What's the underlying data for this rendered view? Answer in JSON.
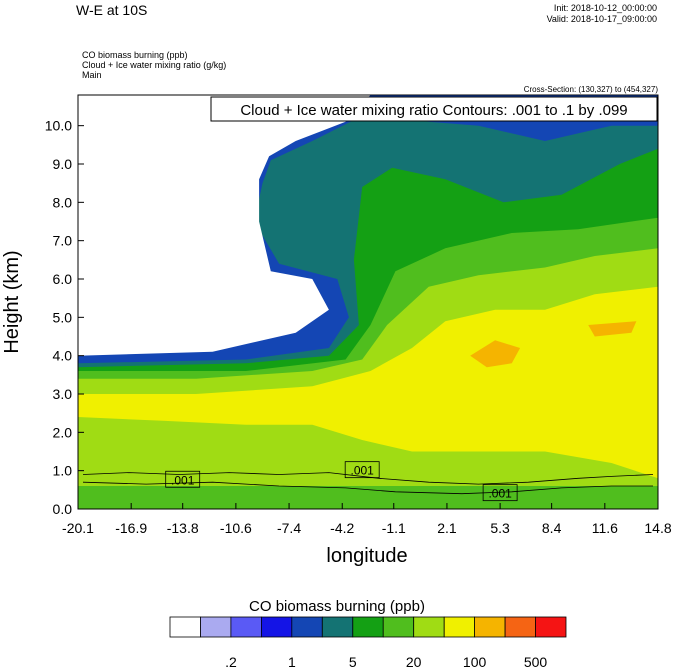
{
  "header": {
    "title": "W-E at 10S",
    "init": "Init: 2018-10-12_00:00:00",
    "valid": "Valid: 2018-10-17_09:00:00",
    "var1": "CO biomass burning   (ppb)",
    "var2": "Cloud + Ice water mixing ratio   (g/kg)",
    "var3": "Main",
    "cross_section": "Cross-Section: (130,327) to (454,327)"
  },
  "chart_data": {
    "type": "heatmap",
    "title": "W-E at 10S",
    "xlabel": "longitude",
    "ylabel": "Height (km)",
    "xlim": [
      -20.1,
      14.8
    ],
    "ylim": [
      0.0,
      10.8
    ],
    "x_ticks": [
      "-20.1",
      "-16.9",
      "-13.8",
      "-10.6",
      "-7.4",
      "-4.2",
      "-1.1",
      "2.1",
      "5.3",
      "8.4",
      "11.6",
      "14.8"
    ],
    "y_ticks": [
      "0.0",
      "1.0",
      "2.0",
      "3.0",
      "4.0",
      "5.0",
      "6.0",
      "7.0",
      "8.0",
      "9.0",
      "10.0"
    ],
    "contour_note": "Cloud + Ice water mixing ratio Contours: .001 to .1 by .099",
    "contour_labels": [
      ".001",
      ".001",
      ".001"
    ],
    "colorbar": {
      "title": "CO biomass burning  (ppb)",
      "colors": [
        "#ffffff",
        "#aaaaf0",
        "#5a5af5",
        "#1414e6",
        "#1446b4",
        "#147373",
        "#14a014",
        "#50be1e",
        "#a0dc14",
        "#f0f000",
        "#f5b400",
        "#f56414",
        "#f51414"
      ],
      "tick_labels": [
        ".2",
        "1",
        "5",
        "20",
        "100",
        "500"
      ]
    },
    "field_layers": [
      {
        "level": "green",
        "color": "#a0dc14",
        "poly": [
          [
            -20.1,
            0.6
          ],
          [
            14.8,
            0.6
          ],
          [
            14.8,
            10.8
          ],
          [
            -20.1,
            10.8
          ]
        ]
      },
      {
        "level": "yellow",
        "color": "#f0f000",
        "poly": [
          [
            -20.1,
            2.4
          ],
          [
            -15,
            2.3
          ],
          [
            -10,
            2.2
          ],
          [
            -6,
            2.2
          ],
          [
            -3,
            1.8
          ],
          [
            0,
            1.5
          ],
          [
            4,
            1.5
          ],
          [
            8,
            1.5
          ],
          [
            12,
            1.2
          ],
          [
            14.8,
            0.8
          ],
          [
            14.8,
            10.8
          ],
          [
            -20.1,
            10.8
          ]
        ]
      },
      {
        "level": "orange",
        "color": "#f5b400",
        "poly": [
          [
            3.5,
            4.0
          ],
          [
            5,
            4.4
          ],
          [
            6.5,
            4.2
          ],
          [
            6,
            3.8
          ],
          [
            4.5,
            3.7
          ]
        ]
      },
      {
        "level": "orange2",
        "color": "#f5b400",
        "poly": [
          [
            10.6,
            4.8
          ],
          [
            13.5,
            4.9
          ],
          [
            13.2,
            4.6
          ],
          [
            11,
            4.5
          ]
        ]
      },
      {
        "level": "lightgreen",
        "color": "#a0dc14",
        "poly": [
          [
            -20.1,
            3.0
          ],
          [
            -13,
            3.0
          ],
          [
            -6,
            3.2
          ],
          [
            -2.5,
            3.6
          ],
          [
            0,
            4.2
          ],
          [
            2,
            4.9
          ],
          [
            5,
            5.2
          ],
          [
            8,
            5.2
          ],
          [
            11,
            5.6
          ],
          [
            14.8,
            5.8
          ],
          [
            14.8,
            10.8
          ],
          [
            -20.1,
            10.8
          ]
        ]
      },
      {
        "level": "green2",
        "color": "#50be1e",
        "poly": [
          [
            -20.1,
            3.4
          ],
          [
            -13,
            3.4
          ],
          [
            -6,
            3.6
          ],
          [
            -3,
            3.9
          ],
          [
            -1.5,
            4.8
          ],
          [
            1,
            5.8
          ],
          [
            4,
            6.1
          ],
          [
            8,
            6.3
          ],
          [
            11,
            6.6
          ],
          [
            14.8,
            6.8
          ],
          [
            14.8,
            10.8
          ],
          [
            -20.1,
            10.8
          ]
        ]
      },
      {
        "level": "darkgreen",
        "color": "#14a014",
        "poly": [
          [
            -20.1,
            3.6
          ],
          [
            -10,
            3.6
          ],
          [
            -4,
            3.9
          ],
          [
            -2.5,
            4.8
          ],
          [
            -1,
            6.2
          ],
          [
            2,
            6.8
          ],
          [
            6,
            7.2
          ],
          [
            10,
            7.3
          ],
          [
            14.8,
            7.6
          ],
          [
            14.8,
            10.8
          ],
          [
            -20.1,
            10.8
          ]
        ]
      },
      {
        "level": "teal",
        "color": "#147373",
        "poly": [
          [
            -20.1,
            3.7
          ],
          [
            -10,
            3.8
          ],
          [
            -5,
            4.0
          ],
          [
            -3.2,
            4.8
          ],
          [
            -3.5,
            6.5
          ],
          [
            -3.0,
            8.4
          ],
          [
            -1.2,
            8.9
          ],
          [
            2.0,
            8.6
          ],
          [
            5.5,
            8.0
          ],
          [
            9.0,
            8.2
          ],
          [
            12.5,
            9.0
          ],
          [
            14.8,
            9.4
          ],
          [
            14.8,
            10.8
          ],
          [
            -20.1,
            10.8
          ]
        ]
      },
      {
        "level": "blue",
        "color": "#1446b4",
        "poly": [
          [
            -20.1,
            3.8
          ],
          [
            -10,
            3.9
          ],
          [
            -5,
            4.2
          ],
          [
            -3.8,
            5.0
          ],
          [
            -4.5,
            6.0
          ],
          [
            -8,
            6.4
          ],
          [
            -9.5,
            7.5
          ],
          [
            -9.0,
            8.5
          ],
          [
            -8.5,
            9.1
          ],
          [
            -6,
            9.6
          ],
          [
            -2.8,
            10.3
          ],
          [
            1,
            10.1
          ],
          [
            4,
            10.0
          ],
          [
            8,
            9.6
          ],
          [
            12,
            10.0
          ],
          [
            14.8,
            10.0
          ],
          [
            14.8,
            10.8
          ],
          [
            -20.1,
            10.8
          ]
        ]
      },
      {
        "level": "white-pocket",
        "color": "#ffffff",
        "poly": [
          [
            -20.1,
            4.0
          ],
          [
            -12,
            4.1
          ],
          [
            -7,
            4.6
          ],
          [
            -5,
            5.2
          ],
          [
            -6,
            6.0
          ],
          [
            -8.5,
            6.2
          ],
          [
            -9.2,
            7.5
          ],
          [
            -9.2,
            8.6
          ],
          [
            -8.6,
            9.2
          ],
          [
            -7,
            9.6
          ],
          [
            -4,
            10.1
          ],
          [
            -2.5,
            10.8
          ],
          [
            -20.1,
            10.8
          ]
        ]
      }
    ],
    "contours": [
      {
        "level": 0.001,
        "line": [
          [
            -19.8,
            0.9
          ],
          [
            -17,
            0.95
          ],
          [
            -14,
            0.9
          ],
          [
            -11,
            0.95
          ],
          [
            -8,
            0.9
          ],
          [
            -5,
            0.95
          ],
          [
            -2,
            0.8
          ],
          [
            1,
            0.7
          ],
          [
            4,
            0.65
          ],
          [
            7,
            0.7
          ],
          [
            10,
            0.8
          ],
          [
            12,
            0.85
          ],
          [
            14.5,
            0.9
          ]
        ]
      },
      {
        "level": 0.001,
        "line": [
          [
            -19.8,
            0.7
          ],
          [
            -16,
            0.65
          ],
          [
            -12,
            0.7
          ],
          [
            -8,
            0.6
          ],
          [
            -4,
            0.55
          ],
          [
            -1,
            0.45
          ],
          [
            3,
            0.4
          ],
          [
            6,
            0.45
          ],
          [
            9,
            0.55
          ],
          [
            12,
            0.6
          ],
          [
            14.5,
            0.6
          ]
        ]
      }
    ]
  }
}
